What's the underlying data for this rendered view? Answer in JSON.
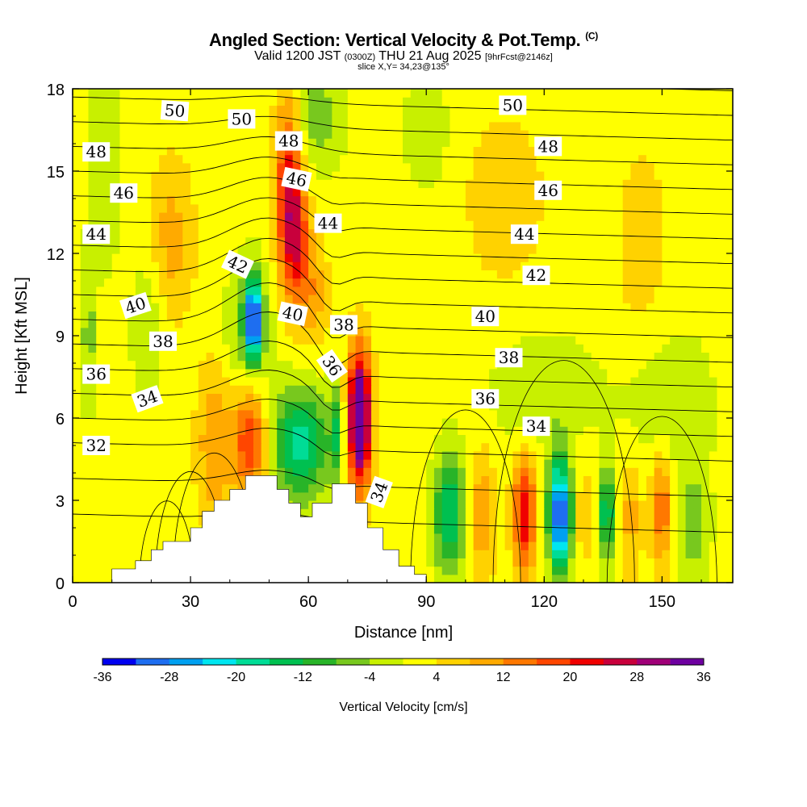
{
  "header": {
    "title": "Angled Section: Vertical Velocity & Pot.Temp.",
    "title_unit": "(C)",
    "subtitle_main": "Valid 1200 JST",
    "subtitle_utc": "(0300Z)",
    "subtitle_date": "THU 21 Aug 2025",
    "subtitle_fcst": "[9hrFcst@2146z]",
    "slice": "slice X,Y= 34,23@135°"
  },
  "chart_data": {
    "type": "heatmap",
    "title": "Angled Section: Vertical Velocity & Pot.Temp. (C)",
    "xlabel": "Distance [nm]",
    "ylabel": "Height [Kft MSL]",
    "xlim": [
      0,
      168
    ],
    "ylim": [
      0,
      18
    ],
    "x_ticks": [
      "0",
      "30",
      "60",
      "90",
      "120",
      "150"
    ],
    "x_tick_values": [
      0,
      30,
      60,
      90,
      120,
      150
    ],
    "y_ticks": [
      "0",
      "3",
      "6",
      "9",
      "12",
      "15",
      "18"
    ],
    "y_tick_values": [
      0,
      3,
      6,
      9,
      12,
      15,
      18
    ],
    "colorbar": {
      "label": "Vertical Velocity [cm/s]",
      "min": -36,
      "max": 36,
      "step": 4,
      "tick_labels": [
        "-36",
        "-28",
        "-20",
        "-12",
        "-4",
        "4",
        "12",
        "20",
        "28",
        "36"
      ],
      "tick_values": [
        -36,
        -28,
        -20,
        -12,
        -4,
        4,
        12,
        20,
        28,
        36
      ],
      "colors": [
        "#0000f0",
        "#1e6ef0",
        "#00a0f0",
        "#00e6f0",
        "#00dc96",
        "#00c050",
        "#28b428",
        "#78c81e",
        "#c8f000",
        "#ffff00",
        "#ffd200",
        "#ffaa00",
        "#ff7800",
        "#ff4600",
        "#f00000",
        "#c8003c",
        "#a00078",
        "#6e00a0"
      ]
    },
    "background_value": 2,
    "features": [
      {
        "x": 73,
        "z": 6.0,
        "sx": 2.0,
        "sz": 1.7,
        "w": 42
      },
      {
        "x": 67,
        "z": 5.6,
        "sx": 1.2,
        "sz": 1.3,
        "w": -12
      },
      {
        "x": 58,
        "z": 5.0,
        "sx": 5.0,
        "sz": 1.5,
        "w": -20
      },
      {
        "x": 45,
        "z": 5.2,
        "sx": 3.0,
        "sz": 1.6,
        "w": 18
      },
      {
        "x": 36,
        "z": 5.0,
        "sx": 3.0,
        "sz": 2.0,
        "w": 10
      },
      {
        "x": 46,
        "z": 9.6,
        "sx": 1.4,
        "sz": 1.0,
        "w": -32
      },
      {
        "x": 45,
        "z": 9.2,
        "sx": 4.0,
        "sz": 1.8,
        "w": -10
      },
      {
        "x": 55,
        "z": 14.6,
        "sx": 2.5,
        "sz": 2.4,
        "w": 20
      },
      {
        "x": 57,
        "z": 12.5,
        "sx": 2.5,
        "sz": 1.5,
        "w": 14
      },
      {
        "x": 61,
        "z": 10.5,
        "sx": 3.0,
        "sz": 1.3,
        "w": 8
      },
      {
        "x": 62,
        "z": 17.0,
        "sx": 5.0,
        "sz": 1.5,
        "w": -8
      },
      {
        "x": 25,
        "z": 12.5,
        "sx": 4.0,
        "sz": 2.0,
        "w": 8
      },
      {
        "x": 19,
        "z": 9.5,
        "sx": 3.0,
        "sz": 2.0,
        "w": -6
      },
      {
        "x": 4,
        "z": 9.0,
        "sx": 1.3,
        "sz": 2.0,
        "w": -8
      },
      {
        "x": 96,
        "z": 2.5,
        "sx": 3.0,
        "sz": 1.6,
        "w": -18
      },
      {
        "x": 104,
        "z": 2.5,
        "sx": 2.5,
        "sz": 1.6,
        "w": 10
      },
      {
        "x": 115,
        "z": 2.5,
        "sx": 2.0,
        "sz": 1.5,
        "w": 22
      },
      {
        "x": 124,
        "z": 2.5,
        "sx": 2.0,
        "sz": 1.4,
        "w": -36
      },
      {
        "x": 130,
        "z": 2.5,
        "sx": 1.5,
        "sz": 1.5,
        "w": 5
      },
      {
        "x": 136,
        "z": 2.5,
        "sx": 1.5,
        "sz": 1.3,
        "w": -18
      },
      {
        "x": 142,
        "z": 2.5,
        "sx": 2.0,
        "sz": 1.5,
        "w": 8
      },
      {
        "x": 150,
        "z": 2.8,
        "sx": 2.0,
        "sz": 1.5,
        "w": 14
      },
      {
        "x": 158,
        "z": 2.0,
        "sx": 3.0,
        "sz": 1.5,
        "w": -8
      },
      {
        "x": 110,
        "z": 14.0,
        "sx": 8.0,
        "sz": 2.5,
        "w": 4
      },
      {
        "x": 145,
        "z": 12.0,
        "sx": 5.0,
        "sz": 3.0,
        "w": 4
      },
      {
        "x": 8,
        "z": 15.5,
        "sx": 3.0,
        "sz": 3.0,
        "w": -6
      },
      {
        "x": 90,
        "z": 16.5,
        "sx": 4.0,
        "sz": 1.5,
        "w": -6
      },
      {
        "x": 120,
        "z": 7.0,
        "sx": 10.0,
        "sz": 1.5,
        "w": -6
      },
      {
        "x": 152,
        "z": 6.5,
        "sx": 8.0,
        "sz": 2.0,
        "w": -6
      }
    ],
    "terrain": [
      {
        "x": 0,
        "z": 0.0
      },
      {
        "x": 10,
        "z": 0.0
      },
      {
        "x": 10,
        "z": 0.5
      },
      {
        "x": 16,
        "z": 0.5
      },
      {
        "x": 16,
        "z": 0.8
      },
      {
        "x": 20,
        "z": 0.8
      },
      {
        "x": 20,
        "z": 1.2
      },
      {
        "x": 23,
        "z": 1.2
      },
      {
        "x": 23,
        "z": 1.5
      },
      {
        "x": 30,
        "z": 1.5
      },
      {
        "x": 30,
        "z": 2.0
      },
      {
        "x": 33,
        "z": 2.0
      },
      {
        "x": 33,
        "z": 2.6
      },
      {
        "x": 36,
        "z": 2.6
      },
      {
        "x": 36,
        "z": 3.0
      },
      {
        "x": 40,
        "z": 3.0
      },
      {
        "x": 40,
        "z": 3.4
      },
      {
        "x": 44,
        "z": 3.4
      },
      {
        "x": 44,
        "z": 3.9
      },
      {
        "x": 52,
        "z": 3.9
      },
      {
        "x": 52,
        "z": 3.4
      },
      {
        "x": 55,
        "z": 3.4
      },
      {
        "x": 55,
        "z": 2.9
      },
      {
        "x": 58,
        "z": 2.9
      },
      {
        "x": 58,
        "z": 2.4
      },
      {
        "x": 61,
        "z": 2.4
      },
      {
        "x": 61,
        "z": 2.9
      },
      {
        "x": 66,
        "z": 2.9
      },
      {
        "x": 66,
        "z": 3.6
      },
      {
        "x": 72,
        "z": 3.6
      },
      {
        "x": 72,
        "z": 2.9
      },
      {
        "x": 75,
        "z": 2.9
      },
      {
        "x": 75,
        "z": 2.0
      },
      {
        "x": 79,
        "z": 2.0
      },
      {
        "x": 79,
        "z": 1.2
      },
      {
        "x": 83,
        "z": 1.2
      },
      {
        "x": 83,
        "z": 0.6
      },
      {
        "x": 87,
        "z": 0.6
      },
      {
        "x": 87,
        "z": 0.3
      },
      {
        "x": 90,
        "z": 0.3
      },
      {
        "x": 90,
        "z": 0.0
      },
      {
        "x": 168,
        "z": 0.0
      }
    ],
    "theta_levels": [
      30,
      31,
      32,
      33,
      34,
      35,
      36,
      37,
      38,
      39,
      40,
      41,
      42,
      43,
      44,
      45,
      46,
      47,
      48,
      49,
      50,
      51,
      52
    ],
    "contour_labels": [
      {
        "text": "50",
        "x": 26,
        "z": 17.2,
        "angle": 4
      },
      {
        "text": "50",
        "x": 43,
        "z": 16.9,
        "angle": 0
      },
      {
        "text": "48",
        "x": 55,
        "z": 16.1,
        "angle": 0
      },
      {
        "text": "46",
        "x": 57,
        "z": 14.7,
        "angle": 12
      },
      {
        "text": "44",
        "x": 65,
        "z": 13.1,
        "angle": 0
      },
      {
        "text": "42",
        "x": 42,
        "z": 11.6,
        "angle": 25
      },
      {
        "text": "40",
        "x": 16,
        "z": 10.1,
        "angle": -18
      },
      {
        "text": "40",
        "x": 56,
        "z": 9.8,
        "angle": 12
      },
      {
        "text": "38",
        "x": 23,
        "z": 8.8,
        "angle": 0
      },
      {
        "text": "38",
        "x": 69,
        "z": 9.4,
        "angle": 0
      },
      {
        "text": "36",
        "x": 66,
        "z": 7.9,
        "angle": 55
      },
      {
        "text": "36",
        "x": 6,
        "z": 7.6,
        "angle": 0
      },
      {
        "text": "34",
        "x": 19,
        "z": 6.7,
        "angle": -20
      },
      {
        "text": "32",
        "x": 6,
        "z": 5.0,
        "angle": 0
      },
      {
        "text": "34",
        "x": 78,
        "z": 3.3,
        "angle": -70
      },
      {
        "text": "48",
        "x": 6,
        "z": 15.7,
        "angle": 0
      },
      {
        "text": "46",
        "x": 13,
        "z": 14.2,
        "angle": 0
      },
      {
        "text": "44",
        "x": 6,
        "z": 12.7,
        "angle": 0
      },
      {
        "text": "50",
        "x": 112,
        "z": 17.4,
        "angle": 0
      },
      {
        "text": "48",
        "x": 121,
        "z": 15.9,
        "angle": 0
      },
      {
        "text": "46",
        "x": 121,
        "z": 14.3,
        "angle": 0
      },
      {
        "text": "44",
        "x": 115,
        "z": 12.7,
        "angle": 0
      },
      {
        "text": "42",
        "x": 118,
        "z": 11.2,
        "angle": 0
      },
      {
        "text": "40",
        "x": 105,
        "z": 9.7,
        "angle": 0
      },
      {
        "text": "38",
        "x": 111,
        "z": 8.2,
        "angle": 0
      },
      {
        "text": "36",
        "x": 105,
        "z": 6.7,
        "angle": 0
      },
      {
        "text": "34",
        "x": 118,
        "z": 5.7,
        "angle": 0
      }
    ]
  }
}
